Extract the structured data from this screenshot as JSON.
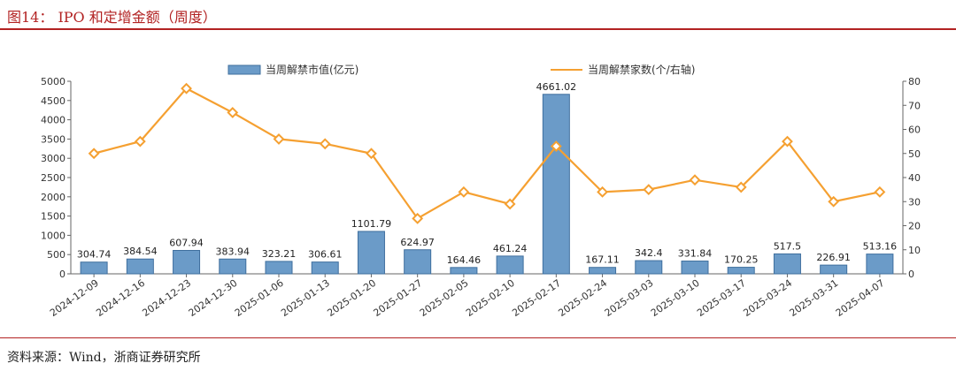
{
  "header": {
    "title": "图14： IPO 和定增金额（周度）"
  },
  "footer": {
    "source": "资料来源：Wind，浙商证券研究所"
  },
  "colors": {
    "bar": "#6b9bc8",
    "bar_stroke": "#3f6f9e",
    "line": "#f5a031",
    "accent": "#b22222"
  },
  "chart_data": {
    "type": "bar",
    "categories": [
      "2024-12-09",
      "2024-12-16",
      "2024-12-23",
      "2024-12-30",
      "2025-01-06",
      "2025-01-13",
      "2025-01-20",
      "2025-01-27",
      "2025-02-05",
      "2025-02-10",
      "2025-02-17",
      "2025-02-24",
      "2025-03-03",
      "2025-03-10",
      "2025-03-17",
      "2025-03-24",
      "2025-03-31",
      "2025-04-07"
    ],
    "series": [
      {
        "name": "当周解禁市值(亿元)",
        "type": "bar",
        "axis": "left",
        "values": [
          304.74,
          384.54,
          607.94,
          383.94,
          323.21,
          306.61,
          1101.79,
          624.97,
          164.46,
          461.24,
          4661.02,
          167.11,
          342.4,
          331.84,
          170.25,
          517.5,
          226.91,
          513.16
        ],
        "labels": [
          "304.74",
          "384.54",
          "607.94",
          "383.94",
          "323.21",
          "306.61",
          "1101.79",
          "624.97",
          "164.46",
          "461.24",
          "4661.02",
          "167.11",
          "342.4",
          "331.84",
          "170.25",
          "517.5",
          "226.91",
          "513.16"
        ]
      },
      {
        "name": "当周解禁家数(个/右轴)",
        "type": "line",
        "axis": "right",
        "values": [
          50,
          55,
          77,
          67,
          56,
          54,
          50,
          23,
          34,
          29,
          53,
          34,
          35,
          39,
          36,
          55,
          30,
          34
        ]
      }
    ],
    "y_left": {
      "min": 0,
      "max": 5000,
      "ticks": [
        "0",
        "500",
        "1000",
        "1500",
        "2000",
        "2500",
        "3000",
        "3500",
        "4000",
        "4500",
        "5000"
      ]
    },
    "y_right": {
      "min": 0,
      "max": 80,
      "ticks": [
        "0",
        "10",
        "20",
        "30",
        "40",
        "50",
        "60",
        "70",
        "80"
      ]
    },
    "legend": "top",
    "grid": false
  }
}
